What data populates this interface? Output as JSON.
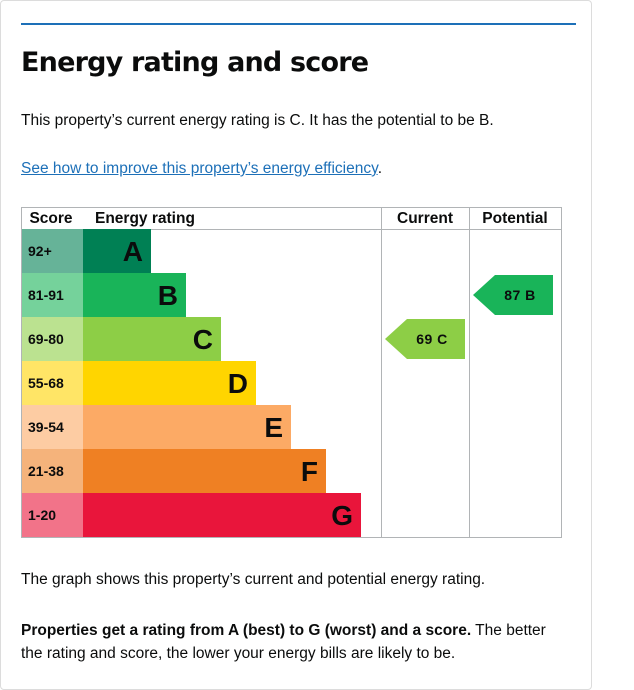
{
  "heading": "Energy rating and score",
  "intro": "This property’s current energy rating is C. It has the potential to be B.",
  "improve_link": "See how to improve this property’s energy efficiency",
  "improve_link_suffix": ".",
  "graph_caption": "The graph shows this property’s current and potential energy rating.",
  "explanation_bold": "Properties get a rating from A (best) to G (worst) and a score.",
  "explanation_rest": " The better the rating and score, the lower your energy bills are likely to be.",
  "chart_data": {
    "type": "table",
    "columns": [
      "Score",
      "Energy rating",
      "Current",
      "Potential"
    ],
    "bands": [
      {
        "score": "92+",
        "letter": "A",
        "bar_color": "#008054",
        "score_color": "#66b398"
      },
      {
        "score": "81-91",
        "letter": "B",
        "bar_color": "#19b459",
        "score_color": "#75d29b"
      },
      {
        "score": "69-80",
        "letter": "C",
        "bar_color": "#8dce46",
        "score_color": "#bbe290"
      },
      {
        "score": "55-68",
        "letter": "D",
        "bar_color": "#ffd500",
        "score_color": "#ffe566"
      },
      {
        "score": "39-54",
        "letter": "E",
        "bar_color": "#fcaa65",
        "score_color": "#fdcca3"
      },
      {
        "score": "21-38",
        "letter": "F",
        "bar_color": "#ef8023",
        "score_color": "#f5b37b"
      },
      {
        "score": "1-20",
        "letter": "G",
        "bar_color": "#e9153b",
        "score_color": "#f27389"
      }
    ],
    "current": {
      "score": 69,
      "letter": "C",
      "label": "69 C",
      "color": "#8dce46"
    },
    "potential": {
      "score": 87,
      "letter": "B",
      "label": "87 B",
      "color": "#19b459"
    }
  }
}
